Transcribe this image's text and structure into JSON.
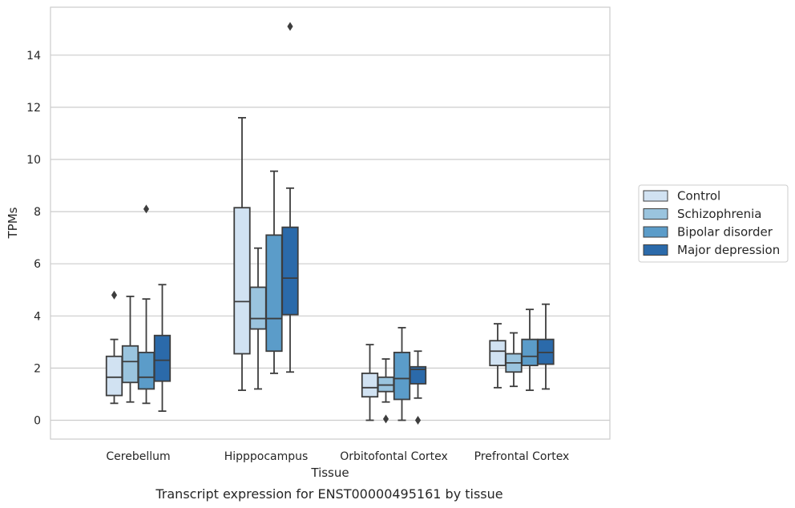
{
  "chart_data": {
    "type": "box",
    "title": "",
    "caption": "Transcript expression for ENST00000495161 by tissue",
    "xlabel": "Tissue",
    "ylabel": "TPMs",
    "ylim": [
      -0.7,
      15.9
    ],
    "yticks": [
      0,
      2,
      4,
      6,
      8,
      10,
      12,
      14
    ],
    "grid": "horizontal",
    "legend_position": "right",
    "categories": [
      "Cerebellum",
      "Hipppocampus",
      "Orbitofontal Cortex",
      "Prefrontal Cortex"
    ],
    "series": [
      {
        "name": "Control",
        "color": "#d1e2f2",
        "boxes": [
          {
            "whislo": 0.65,
            "q1": 0.95,
            "med": 1.65,
            "q3": 2.45,
            "whishi": 3.1,
            "fliers": [
              4.8
            ]
          },
          {
            "whislo": 1.15,
            "q1": 2.55,
            "med": 4.55,
            "q3": 8.15,
            "whishi": 11.6,
            "fliers": []
          },
          {
            "whislo": 0.0,
            "q1": 0.9,
            "med": 1.25,
            "q3": 1.8,
            "whishi": 2.9,
            "fliers": []
          },
          {
            "whislo": 1.25,
            "q1": 2.1,
            "med": 2.65,
            "q3": 3.05,
            "whishi": 3.7,
            "fliers": []
          }
        ]
      },
      {
        "name": "Schizophrenia",
        "color": "#9ac4de",
        "boxes": [
          {
            "whislo": 0.7,
            "q1": 1.45,
            "med": 2.25,
            "q3": 2.85,
            "whishi": 4.75,
            "fliers": []
          },
          {
            "whislo": 1.2,
            "q1": 3.5,
            "med": 3.9,
            "q3": 5.1,
            "whishi": 6.6,
            "fliers": []
          },
          {
            "whislo": 0.7,
            "q1": 1.1,
            "med": 1.35,
            "q3": 1.65,
            "whishi": 2.35,
            "fliers": [
              0.05
            ]
          },
          {
            "whislo": 1.3,
            "q1": 1.85,
            "med": 2.2,
            "q3": 2.55,
            "whishi": 3.35,
            "fliers": []
          }
        ]
      },
      {
        "name": "Bipolar disorder",
        "color": "#5b9cc9",
        "boxes": [
          {
            "whislo": 0.65,
            "q1": 1.2,
            "med": 1.65,
            "q3": 2.6,
            "whishi": 4.65,
            "fliers": [
              8.1
            ]
          },
          {
            "whislo": 1.8,
            "q1": 2.65,
            "med": 3.9,
            "q3": 7.1,
            "whishi": 9.55,
            "fliers": []
          },
          {
            "whislo": 0.0,
            "q1": 0.8,
            "med": 1.6,
            "q3": 2.6,
            "whishi": 3.55,
            "fliers": []
          },
          {
            "whislo": 1.15,
            "q1": 2.1,
            "med": 2.45,
            "q3": 3.1,
            "whishi": 4.25,
            "fliers": []
          }
        ]
      },
      {
        "name": "Major depression",
        "color": "#2b6aaa",
        "boxes": [
          {
            "whislo": 0.35,
            "q1": 1.5,
            "med": 2.3,
            "q3": 3.25,
            "whishi": 5.2,
            "fliers": []
          },
          {
            "whislo": 1.85,
            "q1": 4.05,
            "med": 5.45,
            "q3": 7.4,
            "whishi": 8.9,
            "fliers": [
              15.1
            ]
          },
          {
            "whislo": 0.85,
            "q1": 1.4,
            "med": 1.95,
            "q3": 2.05,
            "whishi": 2.65,
            "fliers": [
              0.0
            ]
          },
          {
            "whislo": 1.2,
            "q1": 2.15,
            "med": 2.6,
            "q3": 3.1,
            "whishi": 4.45,
            "fliers": []
          }
        ]
      }
    ]
  }
}
